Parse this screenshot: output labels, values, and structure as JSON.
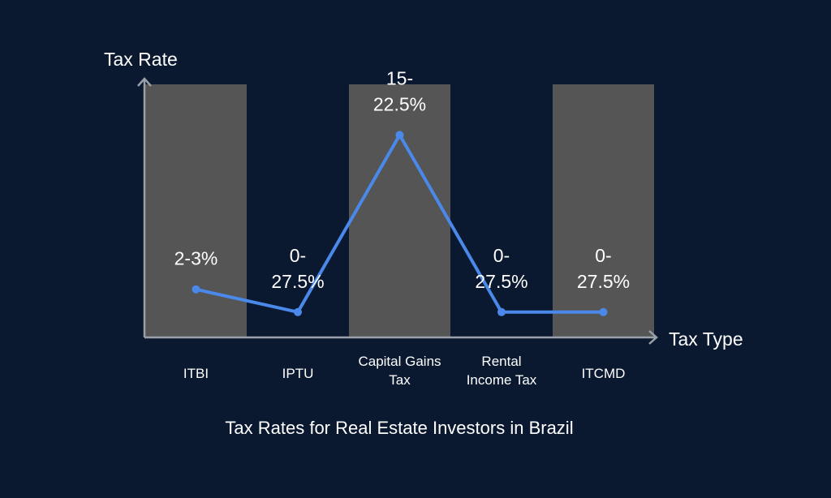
{
  "chart_data": {
    "type": "bar+line",
    "title": "Tax Rates for Real Estate Investors in Brazil",
    "xlabel": "Tax Type",
    "ylabel": "Tax Rate",
    "categories": [
      "ITBI",
      "IPTU",
      "Capital Gains Tax",
      "Rental Income Tax",
      "ITCMD"
    ],
    "category_lines": [
      [
        "ITBI"
      ],
      [
        "IPTU"
      ],
      [
        "Capital Gains",
        "Tax"
      ],
      [
        "Rental",
        "Income Tax"
      ],
      [
        "ITCMD"
      ]
    ],
    "data_labels": [
      [
        "2-3%"
      ],
      [
        "0-",
        "27.5%"
      ],
      [
        "15-",
        "22.5%"
      ],
      [
        "0-",
        "27.5%"
      ],
      [
        "0-",
        "27.5%"
      ]
    ],
    "bars_shown": [
      true,
      false,
      true,
      false,
      true
    ],
    "bar_level": 1,
    "marker_level": [
      0.19,
      0.1,
      0.8,
      0.1,
      0.1
    ],
    "grid": false,
    "legend": "none",
    "colors": {
      "background": "#0a1830",
      "bar": "#555555",
      "line": "#4a88ea",
      "axis": "#9aa0a8",
      "text": "#ffffff"
    }
  }
}
